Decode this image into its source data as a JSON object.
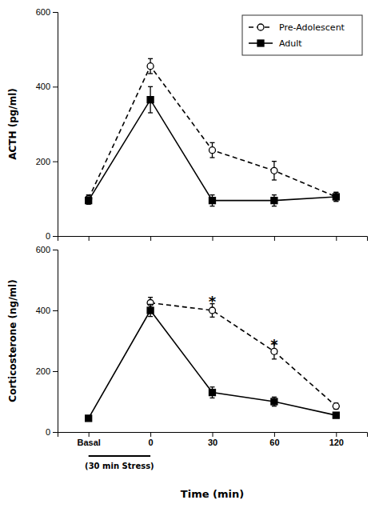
{
  "chart_data": [
    {
      "type": "line",
      "categories": [
        "Basal",
        "0",
        "30",
        "60",
        "120"
      ],
      "series": [
        {
          "name": "Pre-Adolescent",
          "color": "black",
          "marker": "open-circle",
          "line_style": "dashed",
          "values": [
            100,
            455,
            230,
            175,
            105
          ],
          "errors": [
            10,
            20,
            20,
            25,
            12
          ]
        },
        {
          "name": "Adult",
          "color": "black",
          "marker": "square",
          "line_style": "solid",
          "values": [
            95,
            365,
            95,
            95,
            105
          ],
          "errors": [
            10,
            35,
            15,
            15,
            12
          ]
        }
      ],
      "y_label": "ACTH (pg/ml)",
      "ylim": [
        0,
        600
      ],
      "yticks": [
        0,
        200,
        400,
        600
      ],
      "tick_labels": "y",
      "legend": "upper right"
    },
    {
      "type": "line",
      "categories": [
        "Basal",
        "0",
        "30",
        "60",
        "120"
      ],
      "series": [
        {
          "color": "black",
          "marker": "open-circle",
          "line_style": "dashed",
          "values": [
            null,
            425,
            400,
            265,
            85
          ],
          "errors": [
            null,
            18,
            22,
            25,
            10
          ]
        },
        {
          "color": "black",
          "marker": "square",
          "line_style": "solid",
          "values": [
            45,
            400,
            130,
            100,
            55
          ],
          "errors": [
            5,
            20,
            18,
            15,
            8
          ]
        }
      ],
      "x_label": "Time (min)",
      "y_label": "Corticosterone (ng/ml)",
      "ylim": [
        0,
        600
      ],
      "yticks": [
        0,
        200,
        400,
        600
      ],
      "annotations": [
        {
          "text": "*",
          "category": "30",
          "y": 433
        },
        {
          "text": "*",
          "category": "60",
          "y": 293
        },
        {
          "text": "(30 min Stress)",
          "from": "Basal",
          "to": "0"
        }
      ]
    }
  ]
}
